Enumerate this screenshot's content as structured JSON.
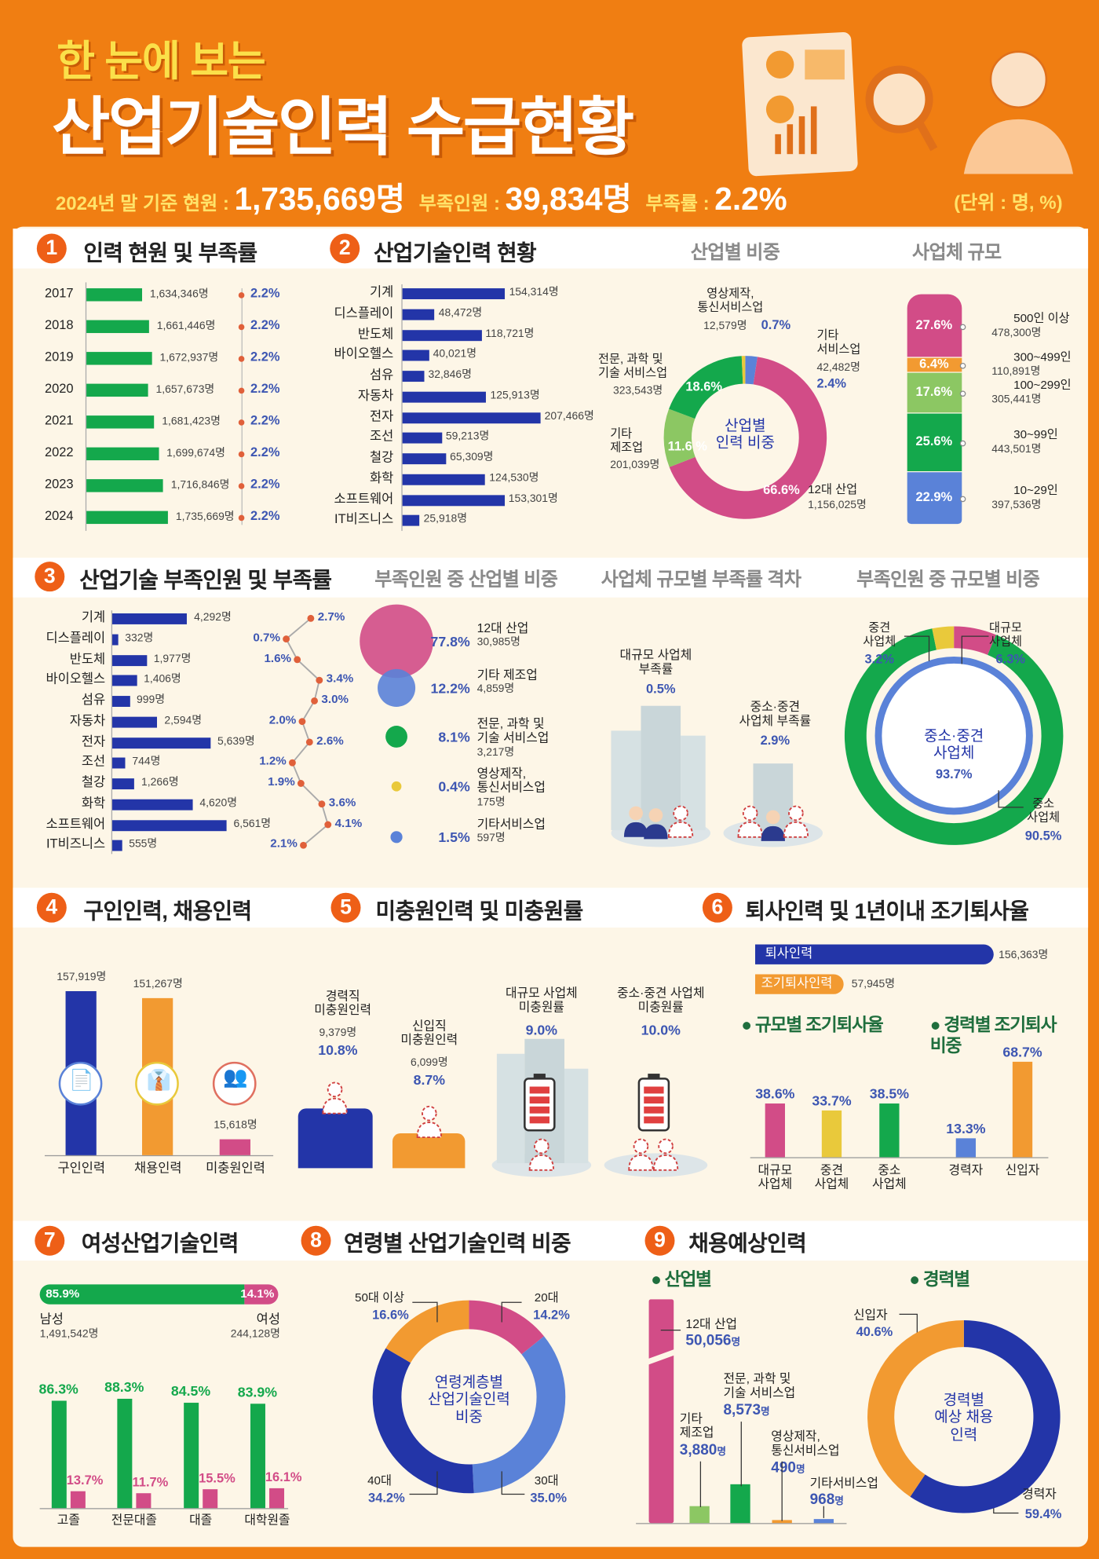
{
  "colors": {
    "orange_bg": "#F07E12",
    "navy": "#2335A8",
    "green": "#14A84C",
    "pink": "#D24C87",
    "orange": "#F29A31",
    "yellow": "#E9C93B",
    "light_blue": "#5A82D8",
    "light_green": "#8CC763",
    "value_blue": "#3D56B2"
  },
  "header": {
    "subtitle": "한 눈에 보는",
    "title": "산업기술인력 수급현황",
    "stat1_label": "2024년 말 기준 현원 : ",
    "stat1_value": "1,735,669명",
    "stat2_label": "부족인원 : ",
    "stat2_value": "39,834명",
    "stat3_label": "부족률 : ",
    "stat3_value": "2.2%",
    "unit": "(단위 : 명, %)"
  },
  "s1": {
    "num": "1",
    "title": "인력 현원 및 부족률",
    "rows": [
      {
        "year": "2017",
        "value": 1634346,
        "label": "1,634,346명",
        "rate": "2.2%"
      },
      {
        "year": "2018",
        "value": 1661446,
        "label": "1,661,446명",
        "rate": "2.2%"
      },
      {
        "year": "2019",
        "value": 1672937,
        "label": "1,672,937명",
        "rate": "2.2%"
      },
      {
        "year": "2020",
        "value": 1657673,
        "label": "1,657,673명",
        "rate": "2.2%"
      },
      {
        "year": "2021",
        "value": 1681423,
        "label": "1,681,423명",
        "rate": "2.2%"
      },
      {
        "year": "2022",
        "value": 1699674,
        "label": "1,699,674명",
        "rate": "2.2%"
      },
      {
        "year": "2023",
        "value": 1716846,
        "label": "1,716,846명",
        "rate": "2.2%"
      },
      {
        "year": "2024",
        "value": 1735669,
        "label": "1,735,669명",
        "rate": "2.2%"
      }
    ]
  },
  "s2": {
    "num": "2",
    "title": "산업기술인력 현황",
    "sub1": "산업별 비중",
    "sub2": "사업체 규모",
    "rows": [
      {
        "name": "기계",
        "value": 154314,
        "label": "154,314명"
      },
      {
        "name": "디스플레이",
        "value": 48472,
        "label": "48,472명"
      },
      {
        "name": "반도체",
        "value": 118721,
        "label": "118,721명"
      },
      {
        "name": "바이오헬스",
        "value": 40021,
        "label": "40,021명"
      },
      {
        "name": "섬유",
        "value": 32846,
        "label": "32,846명"
      },
      {
        "name": "자동차",
        "value": 125913,
        "label": "125,913명"
      },
      {
        "name": "전자",
        "value": 207466,
        "label": "207,466명"
      },
      {
        "name": "조선",
        "value": 59213,
        "label": "59,213명"
      },
      {
        "name": "철강",
        "value": 65309,
        "label": "65,309명"
      },
      {
        "name": "화학",
        "value": 124530,
        "label": "124,530명"
      },
      {
        "name": "소프트웨어",
        "value": 153301,
        "label": "153,301명"
      },
      {
        "name": "IT비즈니스",
        "value": 25918,
        "label": "25,918명"
      }
    ],
    "donut": {
      "center": "산업별\n인력 비중",
      "segments": [
        {
          "name": "기타\n서비스업",
          "count": "42,482명",
          "pct": 2.4,
          "pct_label": "2.4%",
          "color": "#5A82D8"
        },
        {
          "name": "12대 산업",
          "count": "1,156,025명",
          "pct": 66.6,
          "pct_label": "66.6%",
          "color": "#D24C87"
        },
        {
          "name": "기타\n제조업",
          "count": "201,039명",
          "pct": 11.6,
          "pct_label": "11.6 %",
          "color": "#8CC763"
        },
        {
          "name": "전문, 과학 및\n기술 서비스업",
          "count": "323,543명",
          "pct": 18.6,
          "pct_label": "18.6%",
          "color": "#14A84C"
        },
        {
          "name": "영상제작,\n통신서비스업",
          "count": "12,579명",
          "pct": 0.7,
          "pct_label": "0.7%",
          "color": "#E9C93B"
        }
      ]
    },
    "scale": [
      {
        "name": "500인 이상",
        "count": "478,300명",
        "pct": 27.6,
        "pct_label": "27.6%",
        "color": "#D24C87"
      },
      {
        "name": "300~499인",
        "count": "110,891명",
        "pct": 6.4,
        "pct_label": "6.4%",
        "color": "#F29A31"
      },
      {
        "name": "100~299인",
        "count": "305,441명",
        "pct": 17.6,
        "pct_label": "17.6%",
        "color": "#8CC763"
      },
      {
        "name": "30~99인",
        "count": "443,501명",
        "pct": 25.6,
        "pct_label": "25.6%",
        "color": "#14A84C"
      },
      {
        "name": "10~29인",
        "count": "397,536명",
        "pct": 22.9,
        "pct_label": "22.9%",
        "color": "#5A82D8"
      }
    ]
  },
  "s3": {
    "num": "3",
    "title": "산업기술 부족인원 및 부족률",
    "sub1": "부족인원 중 산업별 비중",
    "sub2": "사업체 규모별 부족률 격차",
    "sub3": "부족인원 중 규모별 비중",
    "rows": [
      {
        "name": "기계",
        "value": 4292,
        "label": "4,292명",
        "rate": 2.7,
        "rate_label": "2.7%"
      },
      {
        "name": "디스플레이",
        "value": 332,
        "label": "332명",
        "rate": 0.7,
        "rate_label": "0.7%"
      },
      {
        "name": "반도체",
        "value": 1977,
        "label": "1,977명",
        "rate": 1.6,
        "rate_label": "1.6%"
      },
      {
        "name": "바이오헬스",
        "value": 1406,
        "label": "1,406명",
        "rate": 3.4,
        "rate_label": "3.4%"
      },
      {
        "name": "섬유",
        "value": 999,
        "label": "999명",
        "rate": 3.0,
        "rate_label": "3.0%"
      },
      {
        "name": "자동차",
        "value": 2594,
        "label": "2,594명",
        "rate": 2.0,
        "rate_label": "2.0%"
      },
      {
        "name": "전자",
        "value": 5639,
        "label": "5,639명",
        "rate": 2.6,
        "rate_label": "2.6%"
      },
      {
        "name": "조선",
        "value": 744,
        "label": "744명",
        "rate": 1.2,
        "rate_label": "1.2%"
      },
      {
        "name": "철강",
        "value": 1266,
        "label": "1,266명",
        "rate": 1.9,
        "rate_label": "1.9%"
      },
      {
        "name": "화학",
        "value": 4620,
        "label": "4,620명",
        "rate": 3.6,
        "rate_label": "3.6%"
      },
      {
        "name": "소프트웨어",
        "value": 6561,
        "label": "6,561명",
        "rate": 4.1,
        "rate_label": "4.1%"
      },
      {
        "name": "IT비즈니스",
        "value": 555,
        "label": "555명",
        "rate": 2.1,
        "rate_label": "2.1%"
      }
    ],
    "bubbles": [
      {
        "name": "12대 산업",
        "count": "30,985명",
        "pct": 77.8,
        "pct_label": "77.8%",
        "color": "#D24C87"
      },
      {
        "name": "기타 제조업",
        "count": "4,859명",
        "pct": 12.2,
        "pct_label": "12.2%",
        "color": "#5A82D8"
      },
      {
        "name": "전문, 과학 및\n기술 서비스업",
        "count": "3,217명",
        "pct": 8.1,
        "pct_label": "8.1%",
        "color": "#14A84C"
      },
      {
        "name": "영상제작,\n통신서비스업",
        "count": "175명",
        "pct": 0.4,
        "pct_label": "0.4%",
        "color": "#E9C93B"
      },
      {
        "name": "기타서비스업",
        "count": "597명",
        "pct": 1.5,
        "pct_label": "1.5%",
        "color": "#5A82D8"
      }
    ],
    "gap": {
      "large_label": "대규모 사업체\n부족률",
      "large_value": "0.5%",
      "small_label": "중소·중견\n사업체 부족률",
      "small_value": "2.9%"
    },
    "donut": {
      "center_label": "중소·중견\n사업체",
      "center_value": "93.7%",
      "segments": [
        {
          "name": "대규모\n사업체",
          "pct": 6.3,
          "pct_label": "6.3%",
          "color": "#D24C87"
        },
        {
          "name": "중소\n사업체",
          "pct": 90.5,
          "pct_label": "90.5%",
          "color": "#14A84C"
        },
        {
          "name": "중견\n사업체",
          "pct": 3.2,
          "pct_label": "3.2%",
          "color": "#E9C93B"
        }
      ]
    }
  },
  "s4": {
    "num": "4",
    "title": "구인인력, 채용인력",
    "bars": [
      {
        "name": "구인인력",
        "value": 157919,
        "label": "157,919명",
        "color": "#2335A8"
      },
      {
        "name": "채용인력",
        "value": 151267,
        "label": "151,267명",
        "color": "#F29A31"
      },
      {
        "name": "미충원인력",
        "value": 15618,
        "label": "15,618명",
        "color": "#D24C87"
      }
    ]
  },
  "s5": {
    "num": "5",
    "title": "미충원인력 및 미충원률",
    "career": {
      "label": "경력직\n미충원인력",
      "count": "9,379명",
      "pct": "10.8%"
    },
    "newbie": {
      "label": "신입직\n미충원인력",
      "count": "6,099명",
      "pct": "8.7%"
    },
    "large": {
      "label": "대규모 사업체\n미충원률",
      "pct": "9.0%"
    },
    "small": {
      "label": "중소·중견 사업체\n미충원률",
      "pct": "10.0%"
    }
  },
  "s6": {
    "num": "6",
    "title": "퇴사인력 및 1년이내 조기퇴사율",
    "quit": {
      "label": "퇴사인력",
      "value": 156363,
      "count": "156,363명"
    },
    "early": {
      "label": "조기퇴사인력",
      "value": 57945,
      "count": "57,945명"
    },
    "sub1": "규모별 조기퇴사율",
    "sub2": "경력별 조기퇴사\n비중",
    "by_size": [
      {
        "name": "대규모\n사업체",
        "pct": 38.6,
        "pct_label": "38.6%",
        "color": "#D24C87"
      },
      {
        "name": "중견\n사업체",
        "pct": 33.7,
        "pct_label": "33.7%",
        "color": "#E9C93B"
      },
      {
        "name": "중소\n사업체",
        "pct": 38.5,
        "pct_label": "38.5%",
        "color": "#14A84C"
      }
    ],
    "by_career": [
      {
        "name": "경력자",
        "pct": 13.3,
        "pct_label": "13.3%",
        "color": "#5A82D8"
      },
      {
        "name": "신입자",
        "pct": 68.7,
        "pct_label": "68.7%",
        "color": "#F29A31"
      }
    ]
  },
  "s7": {
    "num": "7",
    "title": "여성산업기술인력",
    "male": {
      "label": "남성",
      "count": "1,491,542명",
      "pct": 85.9,
      "pct_label": "85.9%"
    },
    "female": {
      "label": "여성",
      "count": "244,128명",
      "pct": 14.1,
      "pct_label": "14.1%"
    },
    "edu": [
      {
        "name": "고졸",
        "male": 86.3,
        "male_label": "86.3%",
        "female": 13.7,
        "female_label": "13.7%"
      },
      {
        "name": "전문대졸",
        "male": 88.3,
        "male_label": "88.3%",
        "female": 11.7,
        "female_label": "11.7%"
      },
      {
        "name": "대졸",
        "male": 84.5,
        "male_label": "84.5%",
        "female": 15.5,
        "female_label": "15.5%"
      },
      {
        "name": "대학원졸",
        "male": 83.9,
        "male_label": "83.9%",
        "female": 16.1,
        "female_label": "16.1%"
      }
    ]
  },
  "s8": {
    "num": "8",
    "title": "연령별 산업기술인력 비중",
    "center": "연령계층별\n산업기술인력\n비중",
    "segments": [
      {
        "name": "20대",
        "pct": 14.2,
        "pct_label": "14.2%",
        "color": "#D24C87"
      },
      {
        "name": "30대",
        "pct": 35.0,
        "pct_label": "35.0%",
        "color": "#5A82D8"
      },
      {
        "name": "40대",
        "pct": 34.2,
        "pct_label": "34.2%",
        "color": "#2335A8"
      },
      {
        "name": "50대 이상",
        "pct": 16.6,
        "pct_label": "16.6%",
        "color": "#F29A31"
      }
    ]
  },
  "s9": {
    "num": "9",
    "title": "채용예상인력",
    "sub1": "산업별",
    "sub2": "경력별",
    "industry": [
      {
        "name": "12대 산업",
        "value": 50056,
        "count": "50,056",
        "unit": "명",
        "color": "#D24C87"
      },
      {
        "name": "기타\n제조업",
        "value": 3880,
        "count": "3,880",
        "unit": "명",
        "color": "#8CC763"
      },
      {
        "name": "전문, 과학 및\n기술 서비스업",
        "value": 8573,
        "count": "8,573",
        "unit": "명",
        "color": "#14A84C"
      },
      {
        "name": "영상제작,\n통신서비스업",
        "value": 490,
        "count": "490",
        "unit": "명",
        "color": "#F29A31"
      },
      {
        "name": "기타서비스업",
        "value": 968,
        "count": "968",
        "unit": "명",
        "color": "#5A82D8"
      }
    ],
    "career_center": "경력별\n예상 채용\n인력",
    "career": [
      {
        "name": "경력자",
        "pct": 59.4,
        "pct_label": "59.4%",
        "color": "#2335A8"
      },
      {
        "name": "신입자",
        "pct": 40.6,
        "pct_label": "40.6%",
        "color": "#F29A31"
      }
    ]
  }
}
